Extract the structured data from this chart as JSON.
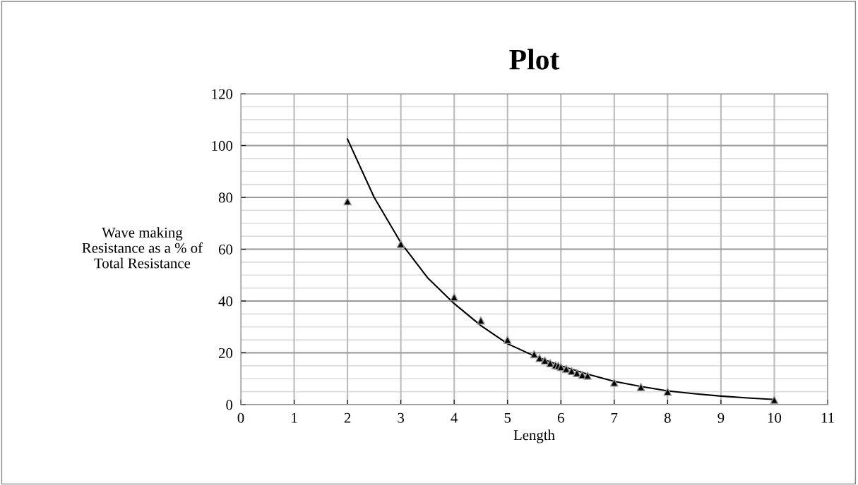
{
  "chart_data": {
    "type": "scatter",
    "title": "Plot",
    "xlabel": "Length",
    "ylabel": "Wave making\nResistance as a % of\nTotal Resistance",
    "xlim": [
      0,
      11
    ],
    "xticks": [
      0,
      1,
      2,
      3,
      4,
      5,
      6,
      7,
      8,
      9,
      10,
      11
    ],
    "ylim": [
      0,
      120
    ],
    "yticks": [
      0,
      20,
      40,
      60,
      80,
      100,
      120
    ],
    "grid": true,
    "legend": false,
    "series": [
      {
        "marker": "triangle",
        "color": "#000000",
        "x": [
          2,
          3,
          4,
          4.5,
          5,
          5.5,
          5.6,
          5.7,
          5.8,
          5.9,
          5.95,
          6,
          6.1,
          6.2,
          6.3,
          6.4,
          6.5,
          7,
          7.5,
          8,
          10
        ],
        "values": [
          78.5,
          62,
          41.5,
          32.5,
          25,
          19.5,
          18,
          17,
          16,
          15.2,
          15,
          14.5,
          13.8,
          13,
          12.2,
          11.5,
          11.2,
          8.5,
          6.8,
          5,
          1.8
        ]
      },
      {
        "type": "line",
        "marker": "none",
        "line_style": "solid",
        "color": "#000000",
        "x": [
          2,
          2.5,
          3,
          3.5,
          4,
          4.5,
          5,
          5.5,
          6,
          6.5,
          7,
          7.5,
          8,
          8.5,
          9,
          9.5,
          10
        ],
        "values": [
          102.5,
          80,
          62.5,
          49,
          39,
          30.5,
          23.5,
          18.8,
          15,
          11.8,
          9,
          7,
          5.3,
          4.2,
          3.3,
          2.6,
          2
        ]
      }
    ]
  }
}
